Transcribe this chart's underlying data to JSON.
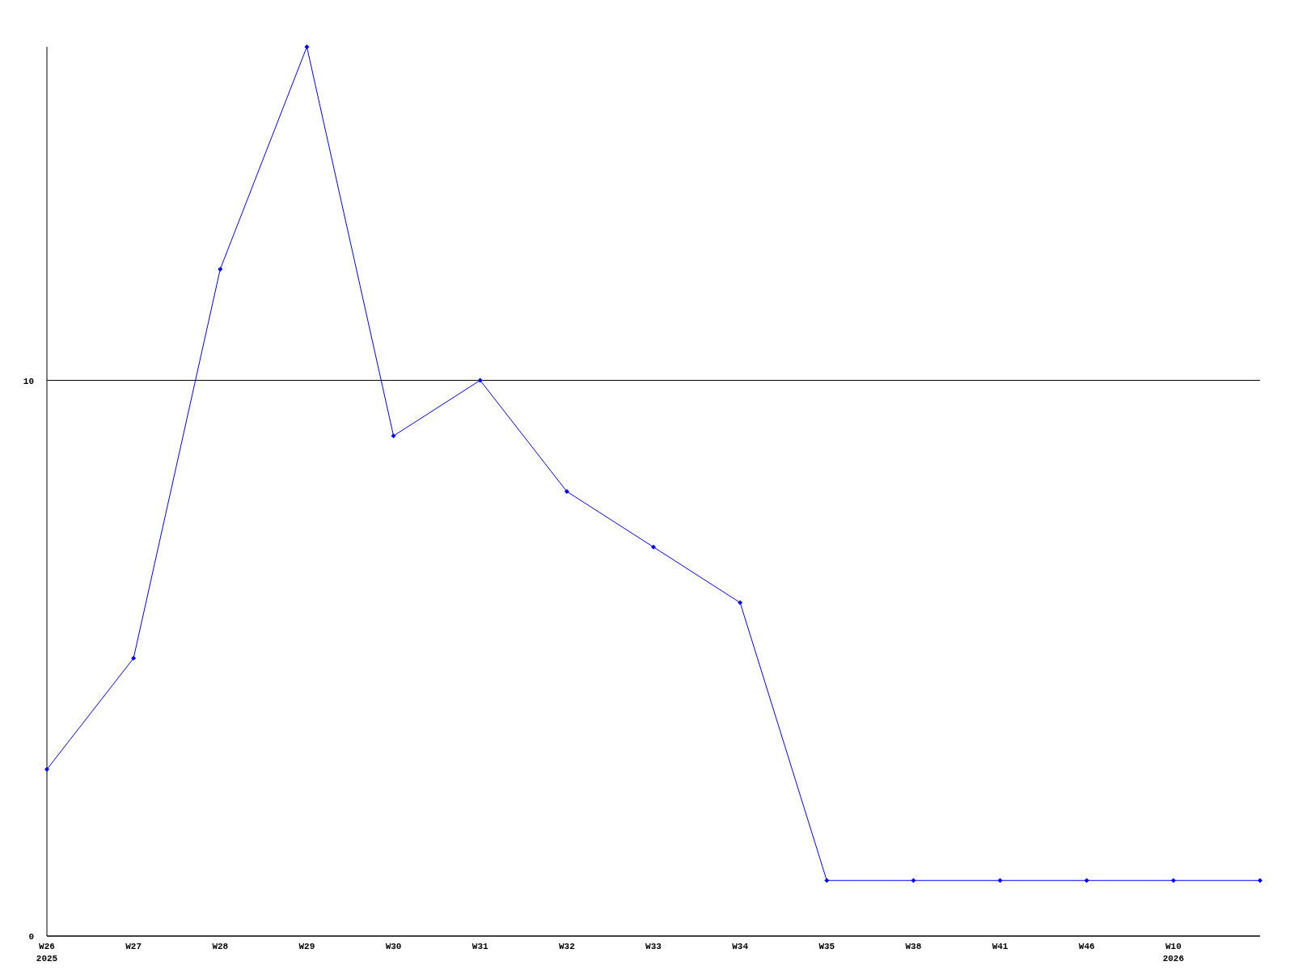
{
  "chart_data": {
    "type": "line",
    "categories": [
      "W26\n2025",
      "W27",
      "W28",
      "W29",
      "W30",
      "W31",
      "W32",
      "W33",
      "W34",
      "W35",
      "W38",
      "W41",
      "W46",
      "W10\n2026",
      null
    ],
    "series": [
      {
        "color": "#0000ff",
        "values": [
          3,
          5,
          12,
          16,
          9,
          10,
          8,
          7,
          6,
          1,
          1,
          1,
          1,
          1,
          1
        ]
      }
    ],
    "ylim": [
      0,
      16
    ],
    "yticks": [
      0,
      10
    ],
    "grid": "y",
    "marker": "diamond",
    "line_style": "solid"
  }
}
